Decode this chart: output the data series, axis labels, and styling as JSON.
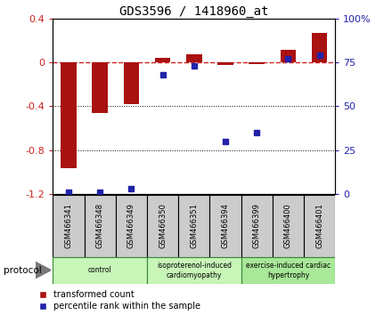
{
  "title": "GDS3596 / 1418960_at",
  "samples": [
    "GSM466341",
    "GSM466348",
    "GSM466349",
    "GSM466350",
    "GSM466351",
    "GSM466394",
    "GSM466399",
    "GSM466400",
    "GSM466401"
  ],
  "transformed_count": [
    -0.97,
    -0.46,
    -0.38,
    0.04,
    0.08,
    -0.02,
    -0.01,
    0.12,
    0.27
  ],
  "percentile_rank": [
    1,
    1,
    3,
    68,
    73,
    30,
    35,
    77,
    79
  ],
  "groups": [
    {
      "label": "control",
      "start": 0,
      "end": 3,
      "color": "#c8f0b8"
    },
    {
      "label": "isoproterenol-induced\ncardiomyopathy",
      "start": 3,
      "end": 6,
      "color": "#c8f0b8"
    },
    {
      "label": "exercise-induced cardiac\nhypertrophy",
      "start": 6,
      "end": 9,
      "color": "#a0e890"
    }
  ],
  "protocol_label": "protocol",
  "ylim_left": [
    -1.2,
    0.4
  ],
  "ylim_right": [
    0,
    100
  ],
  "right_ticks": [
    0,
    25,
    50,
    75,
    100
  ],
  "right_tick_labels": [
    "0",
    "25",
    "50",
    "75",
    "100%"
  ],
  "left_ticks": [
    -1.2,
    -0.8,
    -0.4,
    0.0,
    0.4
  ],
  "bar_color": "#aa1111",
  "dot_color": "#2222aa",
  "dashedline_color": "#cc2222",
  "bg_color": "#ffffff",
  "legend_red_label": "transformed count",
  "legend_blue_label": "percentile rank within the sample",
  "bar_width": 0.5,
  "sample_box_color": "#cccccc",
  "group_border_color": "#338833"
}
